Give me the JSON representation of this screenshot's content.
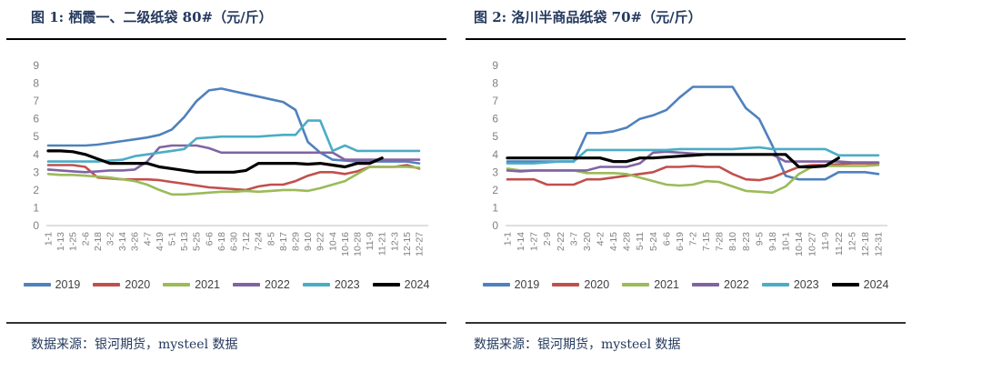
{
  "panels": [
    {
      "title": "图 1: 栖霞一、二级纸袋 80#（元/斤）",
      "source": "数据来源：银河期货，mysteel 数据"
    },
    {
      "title": "图 2: 洛川半商品纸袋 70#（元/斤）",
      "source": "数据来源：银河期货，mysteel 数据"
    }
  ],
  "chart_data": [
    {
      "type": "line",
      "title": "栖霞一、二级纸袋 80#（元/斤）",
      "xlabel": "",
      "ylabel": "",
      "ylim": [
        0,
        9
      ],
      "yticks": [
        0,
        1,
        2,
        3,
        4,
        5,
        6,
        7,
        8,
        9
      ],
      "grid": false,
      "legend_position": "bottom",
      "categories": [
        "1-1",
        "1-13",
        "1-25",
        "2-6",
        "2-18",
        "3-2",
        "3-14",
        "3-26",
        "4-7",
        "4-19",
        "5-1",
        "5-13",
        "5-25",
        "6-6",
        "6-18",
        "6-30",
        "7-12",
        "7-24",
        "8-5",
        "8-17",
        "8-29",
        "9-10",
        "9-22",
        "10-4",
        "10-16",
        "10-28",
        "11-9",
        "11-21",
        "12-3",
        "12-15",
        "12-27"
      ],
      "series": [
        {
          "name": "2019",
          "color": "#4F81BD",
          "width": 2.6,
          "values": [
            4.5,
            4.5,
            4.5,
            4.5,
            4.55,
            4.65,
            4.75,
            4.85,
            4.95,
            5.1,
            5.4,
            6.1,
            7.0,
            7.6,
            7.7,
            7.55,
            7.4,
            7.25,
            7.1,
            6.95,
            6.5,
            4.7,
            4.1,
            3.7,
            3.65,
            3.6,
            3.6,
            3.6,
            3.6,
            3.6,
            3.5
          ]
        },
        {
          "name": "2020",
          "color": "#C0504D",
          "width": 2.6,
          "values": [
            3.4,
            3.4,
            3.4,
            3.3,
            2.7,
            2.65,
            2.6,
            2.6,
            2.6,
            2.55,
            2.45,
            2.35,
            2.25,
            2.15,
            2.1,
            2.05,
            2.0,
            2.2,
            2.3,
            2.3,
            2.5,
            2.8,
            3.0,
            3.0,
            2.9,
            3.05,
            3.3,
            3.3,
            3.3,
            3.4,
            3.2
          ]
        },
        {
          "name": "2021",
          "color": "#9BBB59",
          "width": 2.6,
          "values": [
            2.9,
            2.85,
            2.85,
            2.8,
            2.75,
            2.7,
            2.6,
            2.5,
            2.3,
            2.0,
            1.75,
            1.75,
            1.8,
            1.85,
            1.9,
            1.9,
            1.95,
            1.9,
            1.95,
            2.0,
            2.0,
            1.95,
            2.1,
            2.3,
            2.5,
            2.9,
            3.3,
            3.3,
            3.3,
            3.3,
            3.25
          ]
        },
        {
          "name": "2022",
          "color": "#8064A2",
          "width": 2.6,
          "values": [
            3.15,
            3.1,
            3.05,
            3.0,
            3.05,
            3.1,
            3.1,
            3.15,
            3.6,
            4.4,
            4.5,
            4.5,
            4.5,
            4.35,
            4.1,
            4.1,
            4.1,
            4.1,
            4.1,
            4.1,
            4.1,
            4.1,
            4.1,
            4.1,
            3.7,
            3.7,
            3.7,
            3.7,
            3.7,
            3.7,
            3.7
          ]
        },
        {
          "name": "2023",
          "color": "#4BACC6",
          "width": 2.6,
          "values": [
            3.6,
            3.6,
            3.6,
            3.6,
            3.6,
            3.65,
            3.7,
            3.9,
            4.0,
            4.1,
            4.2,
            4.3,
            4.9,
            4.95,
            5.0,
            5.0,
            5.0,
            5.0,
            5.05,
            5.1,
            5.1,
            5.9,
            5.9,
            4.2,
            4.5,
            4.2,
            4.2,
            4.2,
            4.2,
            4.2,
            4.2
          ]
        },
        {
          "name": "2024",
          "color": "#000000",
          "width": 3.2,
          "values": [
            4.2,
            4.2,
            4.15,
            4.0,
            3.75,
            3.5,
            3.5,
            3.5,
            3.5,
            3.3,
            3.2,
            3.1,
            3.0,
            3.0,
            3.0,
            3.0,
            3.1,
            3.5,
            3.5,
            3.5,
            3.5,
            3.45,
            3.5,
            3.4,
            3.3,
            3.5,
            3.5,
            3.8,
            null,
            null,
            null
          ]
        }
      ]
    },
    {
      "type": "line",
      "title": "洛川半商品纸袋 70#（元/斤）",
      "xlabel": "",
      "ylabel": "",
      "ylim": [
        0,
        9
      ],
      "yticks": [
        0,
        1,
        2,
        3,
        4,
        5,
        6,
        7,
        8,
        9
      ],
      "grid": false,
      "legend_position": "bottom",
      "categories": [
        "1-1",
        "1-14",
        "1-27",
        "2-9",
        "2-22",
        "3-7",
        "3-20",
        "4-2",
        "4-15",
        "4-28",
        "5-11",
        "5-24",
        "6-6",
        "6-19",
        "7-2",
        "7-15",
        "7-28",
        "8-10",
        "8-23",
        "9-5",
        "9-18",
        "10-1",
        "10-14",
        "10-27",
        "11-9",
        "11-22",
        "12-5",
        "12-18",
        "12-31"
      ],
      "series": [
        {
          "name": "2019",
          "color": "#4F81BD",
          "width": 2.6,
          "values": [
            3.6,
            3.6,
            3.6,
            3.6,
            3.6,
            3.6,
            5.2,
            5.2,
            5.3,
            5.5,
            6.0,
            6.2,
            6.5,
            7.2,
            7.8,
            7.8,
            7.8,
            7.8,
            6.6,
            6.0,
            4.5,
            2.8,
            2.6,
            2.6,
            2.6,
            3.0,
            3.0,
            3.0,
            2.9
          ]
        },
        {
          "name": "2020",
          "color": "#C0504D",
          "width": 2.6,
          "values": [
            2.6,
            2.6,
            2.6,
            2.3,
            2.3,
            2.3,
            2.6,
            2.6,
            2.7,
            2.8,
            2.9,
            3.0,
            3.3,
            3.3,
            3.35,
            3.3,
            3.3,
            2.9,
            2.6,
            2.55,
            2.7,
            3.0,
            3.3,
            3.4,
            3.4,
            3.45,
            3.5,
            3.5,
            3.5
          ]
        },
        {
          "name": "2021",
          "color": "#9BBB59",
          "width": 2.6,
          "values": [
            3.2,
            3.1,
            3.1,
            3.1,
            3.1,
            3.1,
            2.95,
            2.95,
            2.95,
            2.9,
            2.7,
            2.5,
            2.3,
            2.25,
            2.3,
            2.5,
            2.45,
            2.2,
            1.95,
            1.9,
            1.85,
            2.2,
            2.9,
            3.3,
            3.35,
            3.35,
            3.35,
            3.35,
            3.4
          ]
        },
        {
          "name": "2022",
          "color": "#8064A2",
          "width": 2.6,
          "values": [
            3.1,
            3.05,
            3.1,
            3.1,
            3.1,
            3.1,
            3.1,
            3.3,
            3.3,
            3.3,
            3.5,
            4.1,
            4.15,
            4.1,
            4.05,
            4.0,
            4.0,
            4.0,
            4.0,
            4.0,
            4.0,
            3.6,
            3.6,
            3.6,
            3.6,
            3.6,
            3.55,
            3.55,
            3.55
          ]
        },
        {
          "name": "2023",
          "color": "#4BACC6",
          "width": 2.6,
          "values": [
            3.5,
            3.5,
            3.5,
            3.55,
            3.6,
            3.6,
            4.25,
            4.25,
            4.25,
            4.25,
            4.25,
            4.25,
            4.25,
            4.3,
            4.3,
            4.3,
            4.3,
            4.3,
            4.35,
            4.4,
            4.3,
            4.3,
            4.3,
            4.3,
            4.3,
            3.95,
            3.95,
            3.95,
            3.95
          ]
        },
        {
          "name": "2024",
          "color": "#000000",
          "width": 3.2,
          "values": [
            3.8,
            3.8,
            3.8,
            3.8,
            3.8,
            3.8,
            3.8,
            3.8,
            3.6,
            3.6,
            3.8,
            3.8,
            3.85,
            3.9,
            3.95,
            4.0,
            4.0,
            4.0,
            4.0,
            4.0,
            4.0,
            4.0,
            3.3,
            3.3,
            3.35,
            3.8,
            null,
            null,
            null
          ]
        }
      ]
    }
  ],
  "style": {
    "axis_text_color": "#808080",
    "baseline_color": "#C9C9C9"
  }
}
